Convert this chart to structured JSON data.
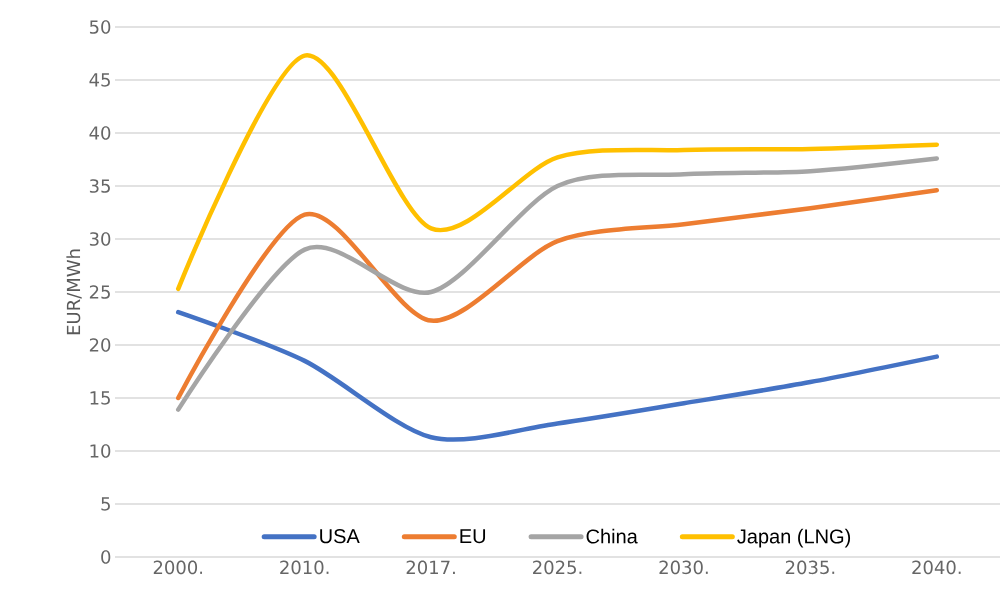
{
  "chart_data": {
    "type": "line",
    "ylabel": "EUR/MWh",
    "categories": [
      "2000.",
      "2010.",
      "2017.",
      "2025.",
      "2030.",
      "2035.",
      "2040."
    ],
    "ylim": [
      0,
      50
    ],
    "yticks": [
      0,
      5,
      10,
      15,
      20,
      25,
      30,
      35,
      40,
      45,
      50
    ],
    "grid": "y",
    "legend": "bottom",
    "marker": "none",
    "line_style": "solid",
    "series": [
      {
        "name": "USA",
        "color": "#4472c4",
        "values": [
          23.1,
          18.5,
          11.3,
          12.6,
          14.5,
          16.5,
          18.9
        ]
      },
      {
        "name": "EU",
        "color": "#ed7d31",
        "values": [
          15,
          32.3,
          22.3,
          29.8,
          31.4,
          32.9,
          34.6
        ]
      },
      {
        "name": "China",
        "color": "#a5a5a5",
        "values": [
          13.9,
          29,
          25,
          35,
          36.1,
          36.4,
          37.6
        ]
      },
      {
        "name": "Japan (LNG)",
        "color": "#ffc000",
        "values": [
          25.3,
          47.3,
          31,
          37.7,
          38.4,
          38.5,
          38.9
        ]
      }
    ]
  }
}
